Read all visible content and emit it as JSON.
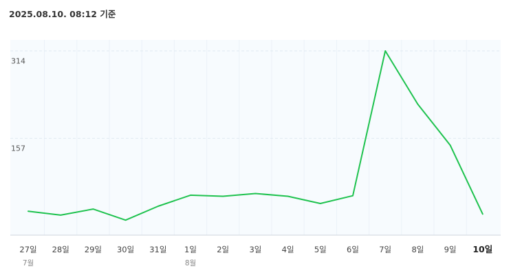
{
  "header": {
    "timestamp": "2025.08.10. 08:12 기준"
  },
  "colors": {
    "line": "#1ec24e",
    "plot_background": "#f7fbfe",
    "gridline": "#dfe9f1",
    "axis": "#cfd6dc"
  },
  "chart_data": {
    "type": "line",
    "categories": [
      "27일",
      "28일",
      "29일",
      "30일",
      "31일",
      "1일",
      "2일",
      "3일",
      "4일",
      "5일",
      "6일",
      "7일",
      "8일",
      "9일",
      "10일"
    ],
    "month_labels": [
      {
        "index": 0,
        "label": "7월"
      },
      {
        "index": 5,
        "label": "8월"
      }
    ],
    "highlight_index": 14,
    "series": [
      {
        "values": [
          43,
          36,
          47,
          27,
          52,
          72,
          70,
          75,
          70,
          57,
          71,
          332,
          236,
          162,
          38
        ]
      }
    ],
    "yticks": [
      314,
      157
    ],
    "ylim": [
      0,
      332
    ],
    "grid": true,
    "legend": "none"
  }
}
